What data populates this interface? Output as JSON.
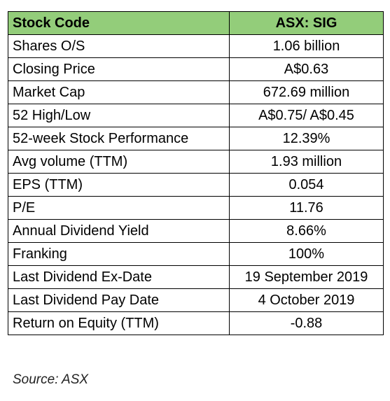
{
  "table": {
    "header": [
      "Stock Code",
      "ASX: SIG"
    ],
    "rows": [
      [
        "Shares O/S",
        "1.06 billion"
      ],
      [
        "Closing Price",
        "A$0.63"
      ],
      [
        "Market Cap",
        "672.69 million"
      ],
      [
        "52 High/Low",
        "A$0.75/ A$0.45"
      ],
      [
        "52-week Stock Performance",
        "12.39%"
      ],
      [
        "Avg volume (TTM)",
        "1.93 million"
      ],
      [
        "EPS (TTM)",
        "0.054"
      ],
      [
        "P/E",
        "11.76"
      ],
      [
        "Annual Dividend Yield",
        "8.66%"
      ],
      [
        "Franking",
        "100%"
      ],
      [
        "Last Dividend Ex-Date",
        "19 September 2019"
      ],
      [
        "Last Dividend Pay Date",
        "4 October 2019"
      ],
      [
        "Return on Equity (TTM)",
        "-0.88"
      ]
    ]
  },
  "source": "Source: ASX"
}
